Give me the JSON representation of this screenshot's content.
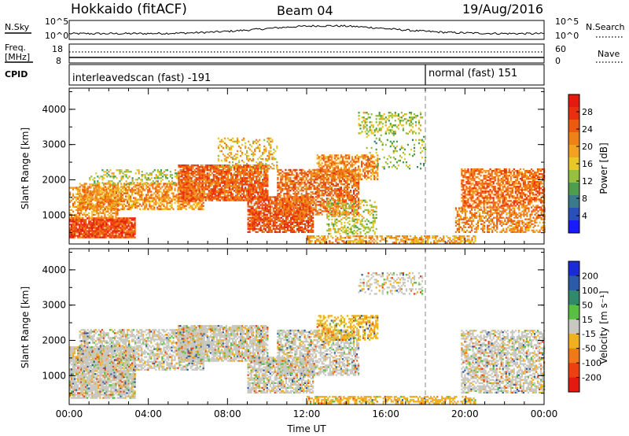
{
  "header": {
    "station": "Hokkaido (fitACF)",
    "beam": "Beam 04",
    "date": "19/Aug/2016"
  },
  "top_panels": {
    "nsky_label": "N.Sky",
    "nsearch_label": "N.Search",
    "noise_ticks": [
      "10^5",
      "10^0"
    ],
    "freq_label": "Freq.",
    "freq_unit": "[MHz]",
    "freq_ticks": [
      "18",
      "8"
    ],
    "nave_label": "Nave",
    "nave_ticks": [
      "60",
      "0"
    ],
    "cpid_label": "CPID",
    "cpid_segments": [
      {
        "name": "interleavedscan (fast) -191",
        "start_hour": 0
      },
      {
        "name": "normal (fast) 151",
        "start_hour": 18
      }
    ]
  },
  "chart_data": [
    {
      "type": "heatmap",
      "title": "Power",
      "x_ticks": [
        "00:00",
        "04:00",
        "08:00",
        "12:00",
        "16:00",
        "20:00",
        "00:00"
      ],
      "xlim_hours": [
        0,
        24
      ],
      "xlabel": "Time UT",
      "ylabel": "Slant Range [km]",
      "ylim_km": [
        180,
        4600
      ],
      "y_ticks": [
        "1000",
        "2000",
        "3000",
        "4000"
      ],
      "colorbar": {
        "label": "Power [dB]",
        "range": [
          0,
          32
        ],
        "ticks": [
          "4",
          "8",
          "12",
          "16",
          "20",
          "24",
          "28"
        ],
        "colors": [
          "#1a1aff",
          "#2850b8",
          "#3a7a8a",
          "#4e9e4e",
          "#98c040",
          "#e8c828",
          "#f4a020",
          "#f08018",
          "#ec5a10",
          "#e83010",
          "#e41a10"
        ]
      },
      "boundary_hour": 18,
      "echo_regions": [
        {
          "t0": 0.0,
          "t1": 3.3,
          "r0": 350,
          "r1": 900,
          "level": 27,
          "density": 0.9
        },
        {
          "t0": 0.0,
          "t1": 2.5,
          "r0": 900,
          "r1": 1800,
          "level": 20,
          "density": 0.55
        },
        {
          "t0": 0.5,
          "t1": 6.8,
          "r0": 1150,
          "r1": 1900,
          "level": 21,
          "density": 0.6
        },
        {
          "t0": 1.0,
          "t1": 5.5,
          "r0": 1850,
          "r1": 2300,
          "level": 14,
          "density": 0.35
        },
        {
          "t0": 5.5,
          "t1": 10.0,
          "r0": 1400,
          "r1": 2400,
          "level": 25,
          "density": 0.8
        },
        {
          "t0": 7.5,
          "t1": 10.5,
          "r0": 2300,
          "r1": 3200,
          "level": 18,
          "density": 0.3
        },
        {
          "t0": 9.0,
          "t1": 12.3,
          "r0": 500,
          "r1": 1500,
          "level": 26,
          "density": 0.75
        },
        {
          "t0": 10.5,
          "t1": 14.6,
          "r0": 1000,
          "r1": 2300,
          "level": 24,
          "density": 0.65
        },
        {
          "t0": 12.5,
          "t1": 15.6,
          "r0": 2000,
          "r1": 2700,
          "level": 22,
          "density": 0.55
        },
        {
          "t0": 13.0,
          "t1": 15.5,
          "r0": 450,
          "r1": 1400,
          "level": 15,
          "density": 0.4
        },
        {
          "t0": 14.6,
          "t1": 17.8,
          "r0": 3300,
          "r1": 3900,
          "level": 14,
          "density": 0.35
        },
        {
          "t0": 15.0,
          "t1": 18.0,
          "r0": 2300,
          "r1": 3300,
          "level": 12,
          "density": 0.12
        },
        {
          "t0": 12.0,
          "t1": 20.5,
          "r0": 200,
          "r1": 420,
          "level": 20,
          "density": 0.55
        },
        {
          "t0": 19.8,
          "t1": 24.0,
          "r0": 1200,
          "r1": 2300,
          "level": 24,
          "density": 0.65
        },
        {
          "t0": 19.5,
          "t1": 24.0,
          "r0": 500,
          "r1": 1200,
          "level": 22,
          "density": 0.55
        }
      ]
    },
    {
      "type": "heatmap",
      "title": "Velocity",
      "x_ticks": [
        "00:00",
        "04:00",
        "08:00",
        "12:00",
        "16:00",
        "20:00",
        "00:00"
      ],
      "xlim_hours": [
        0,
        24
      ],
      "xlabel": "Time UT",
      "ylabel": "Slant Range [km]",
      "ylim_km": [
        180,
        4600
      ],
      "y_ticks": [
        "1000",
        "2000",
        "3000",
        "4000"
      ],
      "colorbar": {
        "label": "Velocity [m s⁻¹]",
        "ticks": [
          "200",
          "100",
          "50",
          "15",
          "-15",
          "-50",
          "-100",
          "-200"
        ],
        "colors": [
          "#1a2ad8",
          "#2a5aa8",
          "#2e8a6a",
          "#58c040",
          "#c8c8c0",
          "#f0b020",
          "#f07818",
          "#ec4010",
          "#e41a10"
        ]
      },
      "boundary_hour": 18,
      "echo_regions": [
        {
          "t0": 0.0,
          "t1": 3.3,
          "r0": 350,
          "r1": 1800,
          "level": 4,
          "density": 0.85
        },
        {
          "t0": 0.5,
          "t1": 6.8,
          "r0": 1150,
          "r1": 2300,
          "level": 4,
          "density": 0.6
        },
        {
          "t0": 5.5,
          "t1": 10.0,
          "r0": 1400,
          "r1": 2400,
          "level": 4,
          "density": 0.8
        },
        {
          "t0": 9.0,
          "t1": 12.3,
          "r0": 500,
          "r1": 1500,
          "level": 4,
          "density": 0.7
        },
        {
          "t0": 10.5,
          "t1": 14.6,
          "r0": 1000,
          "r1": 2300,
          "level": 4,
          "density": 0.6
        },
        {
          "t0": 12.5,
          "t1": 15.6,
          "r0": 2000,
          "r1": 2700,
          "level": 5,
          "density": 0.5
        },
        {
          "t0": 14.6,
          "t1": 17.8,
          "r0": 3300,
          "r1": 3900,
          "level": 4,
          "density": 0.3
        },
        {
          "t0": 12.0,
          "t1": 20.5,
          "r0": 200,
          "r1": 420,
          "level": 5,
          "density": 0.55
        },
        {
          "t0": 19.8,
          "t1": 24.0,
          "r0": 500,
          "r1": 2300,
          "level": 4,
          "density": 0.6
        }
      ]
    }
  ]
}
